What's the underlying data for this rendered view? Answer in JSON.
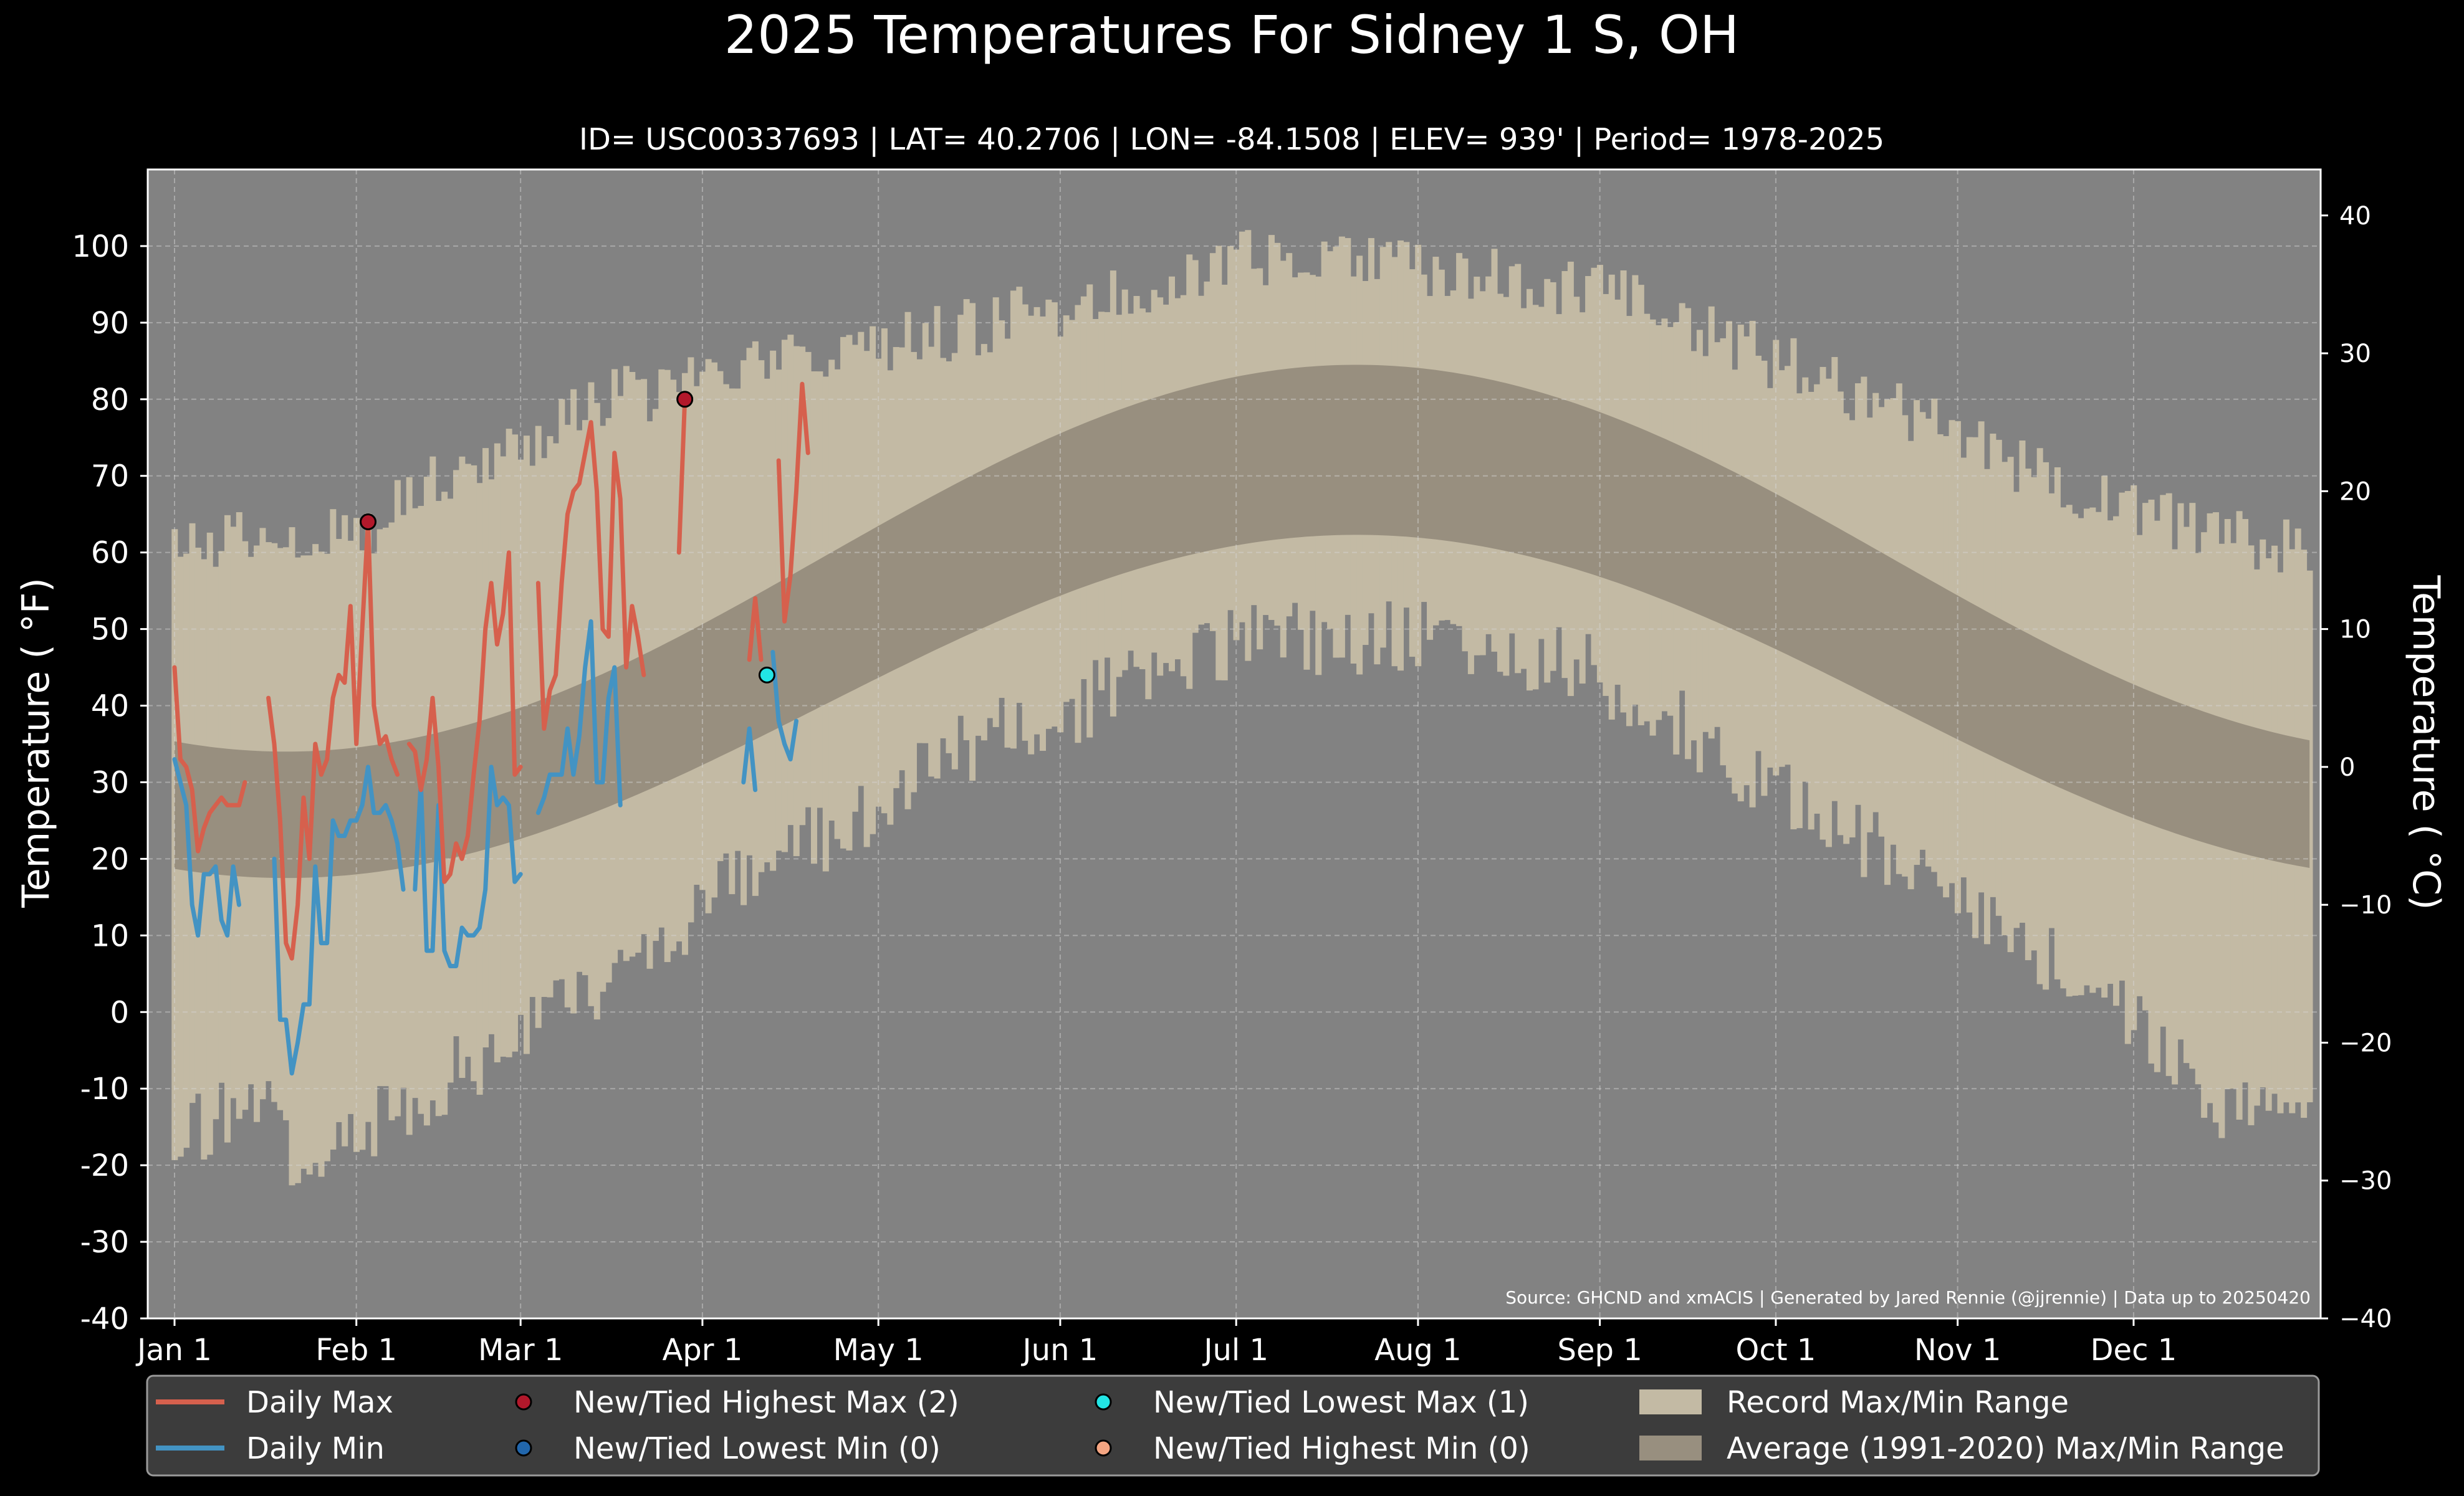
{
  "chart_data": {
    "type": "line",
    "title": "2025 Temperatures For Sidney 1 S, OH",
    "subtitle": "ID= USC00337693 | LAT= 40.2706 | LON= -84.1508 | ELEV= 939' | Period= 1978-2025",
    "ylabel": "Temperature ( $^\\circ$F)",
    "ylabel_text": "Temperature ( °F)",
    "ylabel_right": "Temperature ( °C)",
    "source": "Source: GHCND and xmACIS | Generated by Jared Rennie (@jjrennie) | Data up to 20250420",
    "ylim": [
      -40,
      110
    ],
    "y_ticks": [
      "-40",
      "-30",
      "-20",
      "-10",
      "0",
      "10",
      "20",
      "30",
      "40",
      "50",
      "60",
      "70",
      "80",
      "90",
      "100"
    ],
    "y2_ticks": [
      "−40",
      "−30",
      "−20",
      "−10",
      "0",
      "10",
      "20",
      "30",
      "40"
    ],
    "x_ticks": [
      {
        "label": "Jan 1",
        "day": 1
      },
      {
        "label": "Feb 1",
        "day": 32
      },
      {
        "label": "Mar 1",
        "day": 60
      },
      {
        "label": "Apr 1",
        "day": 91
      },
      {
        "label": "May 1",
        "day": 121
      },
      {
        "label": "Jun 1",
        "day": 152
      },
      {
        "label": "Jul 1",
        "day": 182
      },
      {
        "label": "Aug 1",
        "day": 213
      },
      {
        "label": "Sep 1",
        "day": 244
      },
      {
        "label": "Oct 1",
        "day": 274
      },
      {
        "label": "Nov 1",
        "day": 305
      },
      {
        "label": "Dec 1",
        "day": 335
      }
    ],
    "grid": true,
    "legend": [
      {
        "label": "Daily Max",
        "kind": "line",
        "color": "#d6604d"
      },
      {
        "label": "Daily Min",
        "kind": "line",
        "color": "#4393c3"
      },
      {
        "label": "New/Tied Highest Max (2)",
        "kind": "dot",
        "color": "#b2182b"
      },
      {
        "label": "New/Tied Lowest Min (0)",
        "kind": "dot",
        "color": "#2166ac"
      },
      {
        "label": "New/Tied Lowest Max (1)",
        "kind": "dot",
        "color": "#22e5e5"
      },
      {
        "label": "New/Tied Highest Min (0)",
        "kind": "dot",
        "color": "#f4a582"
      },
      {
        "label": "Record Max/Min Range",
        "kind": "patch",
        "color": "#c3baa4"
      },
      {
        "label": "Average (1991-2020) Max/Min Range",
        "kind": "patch",
        "color": "#988f7f"
      }
    ],
    "colors": {
      "background": "#000000",
      "plot_bg": "#828282",
      "record_range": "#c3baa4",
      "normal_range": "#988f7f",
      "daily_max": "#d6604d",
      "daily_min": "#4393c3",
      "legend_bg": "#3c3c3c"
    },
    "record_max_anchors": [
      [
        1,
        60
      ],
      [
        15,
        63
      ],
      [
        32,
        62
      ],
      [
        45,
        70
      ],
      [
        60,
        74
      ],
      [
        75,
        80
      ],
      [
        91,
        82
      ],
      [
        105,
        85
      ],
      [
        121,
        87
      ],
      [
        135,
        89
      ],
      [
        152,
        92
      ],
      [
        166,
        95
      ],
      [
        182,
        98
      ],
      [
        197,
        99
      ],
      [
        213,
        97
      ],
      [
        228,
        96
      ],
      [
        244,
        94
      ],
      [
        258,
        90
      ],
      [
        274,
        85
      ],
      [
        289,
        80
      ],
      [
        305,
        76
      ],
      [
        319,
        70
      ],
      [
        335,
        66
      ],
      [
        350,
        62
      ],
      [
        365,
        61
      ]
    ],
    "record_min_anchors": [
      [
        1,
        -16
      ],
      [
        15,
        -12
      ],
      [
        25,
        -22
      ],
      [
        32,
        -15
      ],
      [
        45,
        -10
      ],
      [
        60,
        -3
      ],
      [
        75,
        5
      ],
      [
        91,
        14
      ],
      [
        105,
        20
      ],
      [
        121,
        27
      ],
      [
        135,
        34
      ],
      [
        152,
        39
      ],
      [
        166,
        44
      ],
      [
        182,
        48
      ],
      [
        197,
        49
      ],
      [
        213,
        49
      ],
      [
        228,
        47
      ],
      [
        244,
        44
      ],
      [
        258,
        37
      ],
      [
        274,
        29
      ],
      [
        289,
        22
      ],
      [
        305,
        15
      ],
      [
        319,
        8
      ],
      [
        335,
        -2
      ],
      [
        350,
        -12
      ],
      [
        365,
        -11
      ]
    ],
    "normal_max": {
      "jan_min": 34,
      "jul_max": 84.5
    },
    "normal_min": {
      "jan_min": 17.5,
      "jul_max": 62.3
    },
    "daily_max": [
      [
        1,
        45
      ],
      [
        2,
        33
      ],
      [
        3,
        32
      ],
      [
        4,
        29
      ],
      [
        5,
        21
      ],
      [
        6,
        24
      ],
      [
        7,
        26
      ],
      [
        8,
        27
      ],
      [
        9,
        28
      ],
      [
        10,
        27
      ],
      [
        11,
        27
      ],
      [
        12,
        27
      ],
      [
        13,
        30
      ],
      [
        17,
        41
      ],
      [
        18,
        35
      ],
      [
        19,
        25
      ],
      [
        20,
        9
      ],
      [
        21,
        7
      ],
      [
        22,
        14
      ],
      [
        23,
        28
      ],
      [
        24,
        20
      ],
      [
        25,
        35
      ],
      [
        26,
        31
      ],
      [
        27,
        33
      ],
      [
        28,
        41
      ],
      [
        29,
        44
      ],
      [
        30,
        43
      ],
      [
        31,
        53
      ],
      [
        32,
        35
      ],
      [
        33,
        50
      ],
      [
        34,
        64
      ],
      [
        35,
        40
      ],
      [
        36,
        35
      ],
      [
        37,
        36
      ],
      [
        38,
        33
      ],
      [
        39,
        31
      ],
      [
        41,
        35
      ],
      [
        42,
        34
      ],
      [
        43,
        29
      ],
      [
        44,
        33
      ],
      [
        45,
        41
      ],
      [
        46,
        32
      ],
      [
        47,
        17
      ],
      [
        48,
        18
      ],
      [
        49,
        22
      ],
      [
        50,
        20
      ],
      [
        51,
        23
      ],
      [
        52,
        31
      ],
      [
        53,
        38
      ],
      [
        54,
        50
      ],
      [
        55,
        56
      ],
      [
        56,
        48
      ],
      [
        57,
        52
      ],
      [
        58,
        60
      ],
      [
        59,
        31
      ],
      [
        60,
        32
      ],
      [
        63,
        56
      ],
      [
        64,
        37
      ],
      [
        65,
        42
      ],
      [
        66,
        44
      ],
      [
        67,
        56
      ],
      [
        68,
        65
      ],
      [
        69,
        68
      ],
      [
        70,
        69
      ],
      [
        71,
        73
      ],
      [
        72,
        77
      ],
      [
        73,
        68
      ],
      [
        74,
        50
      ],
      [
        75,
        49
      ],
      [
        76,
        73
      ],
      [
        77,
        67
      ],
      [
        78,
        45
      ],
      [
        79,
        53
      ],
      [
        80,
        49
      ],
      [
        81,
        44
      ],
      [
        87,
        60
      ],
      [
        88,
        80
      ],
      [
        99,
        46
      ],
      [
        100,
        54
      ],
      [
        101,
        46
      ],
      [
        104,
        72
      ],
      [
        105,
        51
      ],
      [
        106,
        57
      ],
      [
        107,
        68
      ],
      [
        108,
        82
      ],
      [
        109,
        73
      ]
    ],
    "daily_min": [
      [
        1,
        33
      ],
      [
        2,
        30
      ],
      [
        3,
        27
      ],
      [
        4,
        14
      ],
      [
        5,
        10
      ],
      [
        6,
        18
      ],
      [
        7,
        18
      ],
      [
        8,
        19
      ],
      [
        9,
        12
      ],
      [
        10,
        10
      ],
      [
        11,
        19
      ],
      [
        12,
        14
      ],
      [
        18,
        20
      ],
      [
        19,
        -1
      ],
      [
        20,
        -1
      ],
      [
        21,
        -8
      ],
      [
        22,
        -4
      ],
      [
        23,
        1
      ],
      [
        24,
        1
      ],
      [
        25,
        19
      ],
      [
        26,
        9
      ],
      [
        27,
        9
      ],
      [
        28,
        25
      ],
      [
        29,
        23
      ],
      [
        30,
        23
      ],
      [
        31,
        25
      ],
      [
        32,
        25
      ],
      [
        33,
        27
      ],
      [
        34,
        32
      ],
      [
        35,
        26
      ],
      [
        36,
        26
      ],
      [
        37,
        27
      ],
      [
        38,
        25
      ],
      [
        39,
        22
      ],
      [
        40,
        16
      ],
      [
        42,
        16
      ],
      [
        43,
        30
      ],
      [
        44,
        8
      ],
      [
        45,
        8
      ],
      [
        46,
        27
      ],
      [
        47,
        8
      ],
      [
        48,
        6
      ],
      [
        49,
        6
      ],
      [
        50,
        11
      ],
      [
        51,
        10
      ],
      [
        52,
        10
      ],
      [
        53,
        11
      ],
      [
        54,
        16
      ],
      [
        55,
        32
      ],
      [
        56,
        27
      ],
      [
        57,
        28
      ],
      [
        58,
        27
      ],
      [
        59,
        17
      ],
      [
        60,
        18
      ],
      [
        63,
        26
      ],
      [
        64,
        28
      ],
      [
        65,
        31
      ],
      [
        66,
        31
      ],
      [
        67,
        31
      ],
      [
        68,
        37
      ],
      [
        69,
        31
      ],
      [
        70,
        36
      ],
      [
        71,
        45
      ],
      [
        72,
        51
      ],
      [
        73,
        30
      ],
      [
        74,
        30
      ],
      [
        75,
        41
      ],
      [
        76,
        45
      ],
      [
        77,
        27
      ],
      [
        98,
        30
      ],
      [
        99,
        37
      ],
      [
        100,
        29
      ],
      [
        103,
        47
      ],
      [
        104,
        38
      ],
      [
        105,
        35
      ],
      [
        106,
        33
      ],
      [
        107,
        38
      ]
    ],
    "record_points": [
      {
        "type": "New/Tied Highest Max",
        "day": 34,
        "value": 64
      },
      {
        "type": "New/Tied Highest Max",
        "day": 88,
        "value": 80
      },
      {
        "type": "New/Tied Lowest Max",
        "day": 102,
        "value": 44
      }
    ]
  }
}
